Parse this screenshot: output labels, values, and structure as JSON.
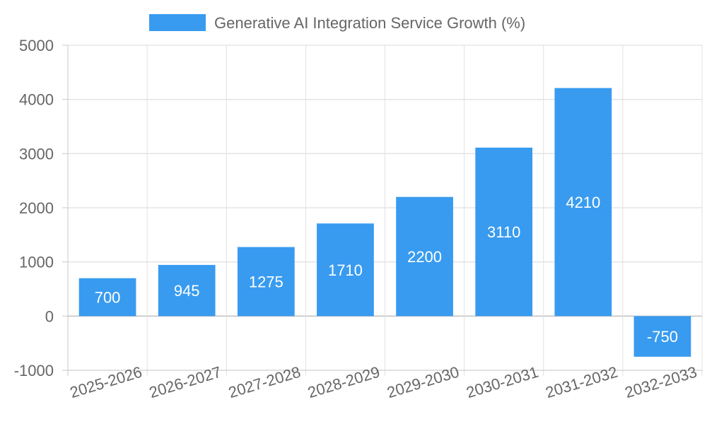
{
  "chart_data": {
    "type": "bar",
    "categories": [
      "2025-2026",
      "2026-2027",
      "2027-2028",
      "2028-2029",
      "2029-2030",
      "2030-2031",
      "2031-2032",
      "2032-2033"
    ],
    "series": [
      {
        "name": "Generative AI Integration Service Growth (%)",
        "values": [
          700,
          945,
          1275,
          1710,
          2200,
          3110,
          4210,
          -750
        ],
        "color": "#389bf0"
      }
    ],
    "title": "",
    "xlabel": "",
    "ylabel": "",
    "ylim": [
      -1000,
      5000
    ],
    "yticks": [
      "5000",
      "4000",
      "3000",
      "2000",
      "1000",
      "0",
      "-1000"
    ],
    "grid": true,
    "legend_position": "top"
  }
}
